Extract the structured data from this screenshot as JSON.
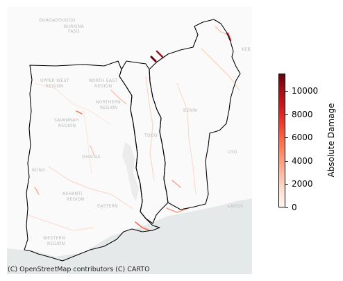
{
  "map": {
    "attribution": "(C) OpenStreetMap contributors (C) CARTO",
    "basemap_labels": [
      {
        "id": "ouagadougou",
        "text": "OUAGADOUGOU"
      },
      {
        "id": "burkina",
        "text": "BURKINA"
      },
      {
        "id": "faso",
        "text": "FASO"
      },
      {
        "id": "upper-west",
        "text": "UPPER WEST"
      },
      {
        "id": "upper-west-region",
        "text": "REGION"
      },
      {
        "id": "north-east",
        "text": "NORTH EAST"
      },
      {
        "id": "north-east-region",
        "text": "REGION"
      },
      {
        "id": "northern",
        "text": "NORTHERN"
      },
      {
        "id": "northern-region",
        "text": "REGION"
      },
      {
        "id": "savannah",
        "text": "SAVANNAH"
      },
      {
        "id": "savannah-region",
        "text": "REGION"
      },
      {
        "id": "benin",
        "text": "BENIN"
      },
      {
        "id": "togo",
        "text": "TOGO"
      },
      {
        "id": "ghana",
        "text": "GHANA"
      },
      {
        "id": "bono",
        "text": "BONO"
      },
      {
        "id": "ashanti",
        "text": "ASHANTI"
      },
      {
        "id": "ashanti-region",
        "text": "REGION"
      },
      {
        "id": "eastern",
        "text": "EASTERN"
      },
      {
        "id": "western",
        "text": "WESTERN"
      },
      {
        "id": "western-region",
        "text": "REGION"
      },
      {
        "id": "lagos",
        "text": "LAGOS"
      },
      {
        "id": "oyo",
        "text": "OYO"
      },
      {
        "id": "keb",
        "text": "KEB"
      }
    ],
    "accent_colors": {
      "border": "#000000",
      "water": "#e6e9ea",
      "land": "#fafafa"
    }
  },
  "colorbar": {
    "label": "Absolute Damage",
    "min": 0,
    "max": 11500,
    "ticks": [
      {
        "value": 0,
        "label": "0"
      },
      {
        "value": 2000,
        "label": "2000"
      },
      {
        "value": 4000,
        "label": "4000"
      },
      {
        "value": 6000,
        "label": "6000"
      },
      {
        "value": 8000,
        "label": "8000"
      },
      {
        "value": 10000,
        "label": "10000"
      }
    ],
    "colormap": "Reds"
  }
}
